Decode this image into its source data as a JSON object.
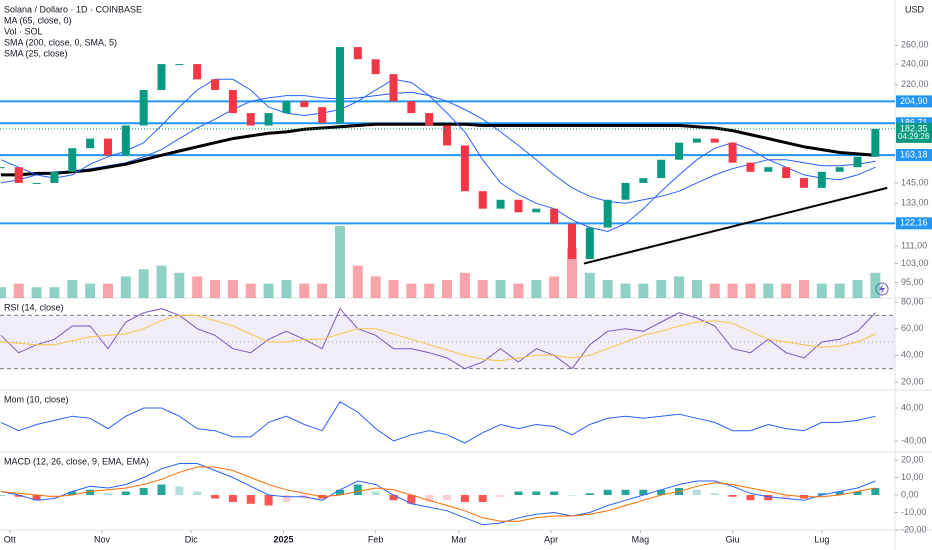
{
  "chart_data": [
    {
      "type": "candlestick",
      "title": "Solana / Dollaro · 1D · COINBASE",
      "currency": "USD",
      "log_scale": true,
      "x": [
        0,
        6,
        12,
        18,
        24,
        30,
        36,
        42,
        48,
        54,
        60,
        66,
        72,
        78,
        84,
        90,
        96,
        102,
        108,
        114,
        120,
        126,
        132,
        138,
        144,
        150,
        156,
        162,
        168,
        174,
        180,
        186,
        192,
        198,
        204,
        210,
        216,
        222,
        228,
        234,
        240,
        246,
        252,
        258,
        264,
        270,
        276,
        282,
        288,
        294
      ],
      "close": [
        155,
        145,
        145,
        152,
        168,
        175,
        163,
        185,
        215,
        240,
        240,
        225,
        215,
        195,
        185,
        195,
        205,
        200,
        187,
        258,
        245,
        230,
        205,
        195,
        185,
        170,
        140,
        130,
        135,
        128,
        130,
        122,
        105,
        120,
        135,
        145,
        148,
        160,
        172,
        175,
        172,
        158,
        152,
        155,
        148,
        142,
        152,
        155,
        162,
        182.35
      ],
      "up_color": "#089981",
      "down_color": "#f23645",
      "volume": {
        "name": "Vol · SOL",
        "values": [
          3,
          4,
          3,
          3,
          5,
          4,
          4,
          6,
          8,
          9,
          7,
          6,
          5,
          5,
          4,
          4,
          5,
          4,
          4,
          20,
          9,
          6,
          5,
          4,
          4,
          5,
          7,
          5,
          5,
          4,
          5,
          6,
          14,
          7,
          5,
          4,
          4,
          5,
          6,
          5,
          4,
          4,
          4,
          4,
          4,
          5,
          4,
          4,
          5,
          7
        ]
      },
      "overlays": [
        {
          "name": "MA (65, close, 0)",
          "color": "#2962ff",
          "width": 1,
          "values": [
            145,
            147,
            150,
            152,
            152,
            154,
            156,
            158,
            162,
            167,
            175,
            183,
            190,
            198,
            205,
            208,
            210,
            210,
            208,
            207,
            208,
            210,
            212,
            213,
            210,
            205,
            198,
            190,
            180,
            170,
            160,
            150,
            142,
            137,
            134,
            133,
            135,
            137,
            140,
            145,
            150,
            154,
            157,
            160,
            160,
            158,
            156,
            156,
            157,
            159
          ]
        },
        {
          "name": "SMA (200, close, 0, SMA, 5)",
          "color": "#000000",
          "width": 3,
          "values": [
            150,
            150,
            151,
            151,
            152,
            153,
            155,
            157,
            160,
            163,
            166,
            169,
            172,
            175,
            177,
            179,
            180,
            182,
            183,
            184,
            185,
            186,
            186,
            186,
            186,
            186,
            186,
            185,
            185,
            185,
            185,
            185,
            185,
            185,
            185,
            185,
            185,
            185,
            185,
            184,
            183,
            181,
            178,
            175,
            172,
            169,
            167,
            165,
            164,
            163
          ]
        },
        {
          "name": "SMA (25, close)",
          "color": "#2962ff",
          "width": 1,
          "values": [
            160,
            155,
            150,
            148,
            150,
            157,
            162,
            166,
            172,
            185,
            200,
            215,
            225,
            225,
            215,
            200,
            195,
            193,
            195,
            198,
            205,
            215,
            225,
            222,
            210,
            195,
            180,
            160,
            145,
            138,
            133,
            130,
            124,
            120,
            118,
            122,
            130,
            140,
            150,
            160,
            168,
            172,
            167,
            160,
            155,
            150,
            148,
            147,
            150,
            155
          ]
        }
      ],
      "levels": [
        {
          "value": 204.9,
          "label": "204,90"
        },
        {
          "value": 186.71,
          "label": "186,71"
        },
        {
          "value": 163.18,
          "label": "163,18"
        },
        {
          "value": 122.16,
          "label": "122,16"
        }
      ],
      "level_color": "#2196f3",
      "trendline": {
        "x": [
          196,
          298
        ],
        "values": [
          103,
          142
        ]
      },
      "last_price": {
        "value": 182.35,
        "label": "182,35"
      },
      "countdown": "04:29:28",
      "ylim": [
        89,
        315
      ],
      "yticks": [
        {
          "value": 260,
          "label": "260,00"
        },
        {
          "value": 240,
          "label": "240,00"
        },
        {
          "value": 220,
          "label": "220,00"
        },
        {
          "value": 145,
          "label": "145,00"
        },
        {
          "value": 133,
          "label": "133,00"
        },
        {
          "value": 111,
          "label": "111,00"
        },
        {
          "value": 103,
          "label": "103,00"
        },
        {
          "value": 95,
          "label": "95,00"
        }
      ],
      "xlim": [
        -0.3,
        300.6
      ],
      "xticks": [
        {
          "value": 3,
          "label": "Ott"
        },
        {
          "value": 34,
          "label": "Nov"
        },
        {
          "value": 64,
          "label": "Dic"
        },
        {
          "value": 95,
          "label": "2025",
          "bold": true
        },
        {
          "value": 126,
          "label": "Feb"
        },
        {
          "value": 154,
          "label": "Mar"
        },
        {
          "value": 185,
          "label": "Apr"
        },
        {
          "value": 215,
          "label": "Mag"
        },
        {
          "value": 246,
          "label": "Giu"
        },
        {
          "value": 276,
          "label": "Lug"
        }
      ]
    },
    {
      "type": "line",
      "title": "RSI (14, close)",
      "ylim": [
        14,
        83
      ],
      "band": [
        30,
        70
      ],
      "midline": 50,
      "yticks": [
        {
          "value": 80,
          "label": "80,00"
        },
        {
          "value": 60,
          "label": "60,00"
        },
        {
          "value": 40,
          "label": "40,00"
        },
        {
          "value": 20,
          "label": "20,00"
        }
      ],
      "series": [
        {
          "color": "#7e57c2",
          "values": [
            55,
            42,
            48,
            52,
            62,
            62,
            45,
            65,
            72,
            75,
            70,
            60,
            55,
            45,
            42,
            52,
            58,
            52,
            45,
            75,
            60,
            55,
            45,
            45,
            42,
            38,
            30,
            35,
            45,
            35,
            45,
            40,
            30,
            48,
            58,
            60,
            58,
            65,
            72,
            68,
            62,
            45,
            42,
            52,
            42,
            38,
            50,
            52,
            58,
            72
          ]
        },
        {
          "color": "#f7c548",
          "values": [
            50,
            49,
            48,
            48,
            51,
            54,
            55,
            56,
            60,
            66,
            70,
            70,
            66,
            62,
            56,
            50,
            50,
            52,
            52,
            56,
            60,
            60,
            56,
            52,
            48,
            44,
            40,
            37,
            36,
            38,
            40,
            40,
            38,
            40,
            45,
            50,
            55,
            58,
            62,
            65,
            66,
            64,
            58,
            52,
            50,
            48,
            46,
            47,
            50,
            56
          ]
        }
      ]
    },
    {
      "type": "line",
      "title": "Mom (10, close)",
      "ylim": [
        -66.7,
        83.6
      ],
      "yticks": [
        {
          "value": 40,
          "label": "40,00"
        },
        {
          "value": -40,
          "label": "-40,00"
        }
      ],
      "series": [
        {
          "color": "#2962ff",
          "values": [
            5,
            -15,
            0,
            10,
            20,
            15,
            -10,
            20,
            40,
            40,
            20,
            -10,
            -15,
            -30,
            -30,
            5,
            20,
            0,
            -15,
            55,
            30,
            -10,
            -40,
            -25,
            -15,
            -25,
            -45,
            -20,
            0,
            -10,
            0,
            -5,
            -25,
            0,
            15,
            20,
            15,
            20,
            25,
            15,
            5,
            -15,
            -15,
            0,
            -10,
            -15,
            5,
            5,
            10,
            20
          ]
        }
      ]
    },
    {
      "type": "macd",
      "title": "MACD (12, 26, close, 9, EMA, EMA)",
      "ylim": [
        -20,
        24.6
      ],
      "yticks": [
        {
          "value": 20,
          "label": "20,00"
        },
        {
          "value": 10,
          "label": "10,00"
        },
        {
          "value": 0,
          "label": "0,00"
        },
        {
          "value": -10,
          "label": "-10,00"
        },
        {
          "value": -20,
          "label": "-20,00"
        }
      ],
      "macd": {
        "color": "#2962ff",
        "values": [
          2,
          0,
          -3,
          -2,
          2,
          5,
          4,
          6,
          10,
          15,
          18,
          18,
          14,
          10,
          5,
          0,
          -1,
          -1,
          -3,
          3,
          8,
          6,
          0,
          -5,
          -7,
          -9,
          -13,
          -17,
          -16,
          -13,
          -11,
          -10,
          -12,
          -10,
          -6,
          -3,
          0,
          3,
          6,
          8,
          8,
          5,
          1,
          -1,
          -2,
          -3,
          0,
          2,
          4,
          8
        ]
      },
      "signal": {
        "color": "#ff6d00",
        "values": [
          2,
          1,
          0,
          -1,
          0,
          2,
          3,
          4,
          6,
          9,
          13,
          16,
          16,
          14,
          10,
          6,
          3,
          1,
          -1,
          0,
          2,
          4,
          3,
          0,
          -3,
          -6,
          -9,
          -13,
          -15,
          -15,
          -13,
          -12,
          -12,
          -11,
          -9,
          -6,
          -3,
          0,
          2,
          5,
          7,
          6,
          4,
          2,
          0,
          -1,
          -1,
          0,
          2,
          4
        ]
      },
      "histogram": {
        "colors": [
          "#26a69a",
          "#b2dfdb",
          "#ff5252",
          "#ffcdd2"
        ],
        "values": [
          0,
          -1,
          -3,
          -1,
          2,
          3,
          1,
          2,
          4,
          6,
          5,
          2,
          -2,
          -4,
          -5,
          -6,
          -4,
          -2,
          -2,
          3,
          6,
          2,
          -3,
          -5,
          -4,
          -3,
          -4,
          -4,
          -1,
          2,
          2,
          2,
          0,
          1,
          3,
          3,
          3,
          3,
          4,
          3,
          1,
          -1,
          -3,
          -3,
          -2,
          -2,
          1,
          2,
          2,
          4
        ]
      }
    }
  ]
}
